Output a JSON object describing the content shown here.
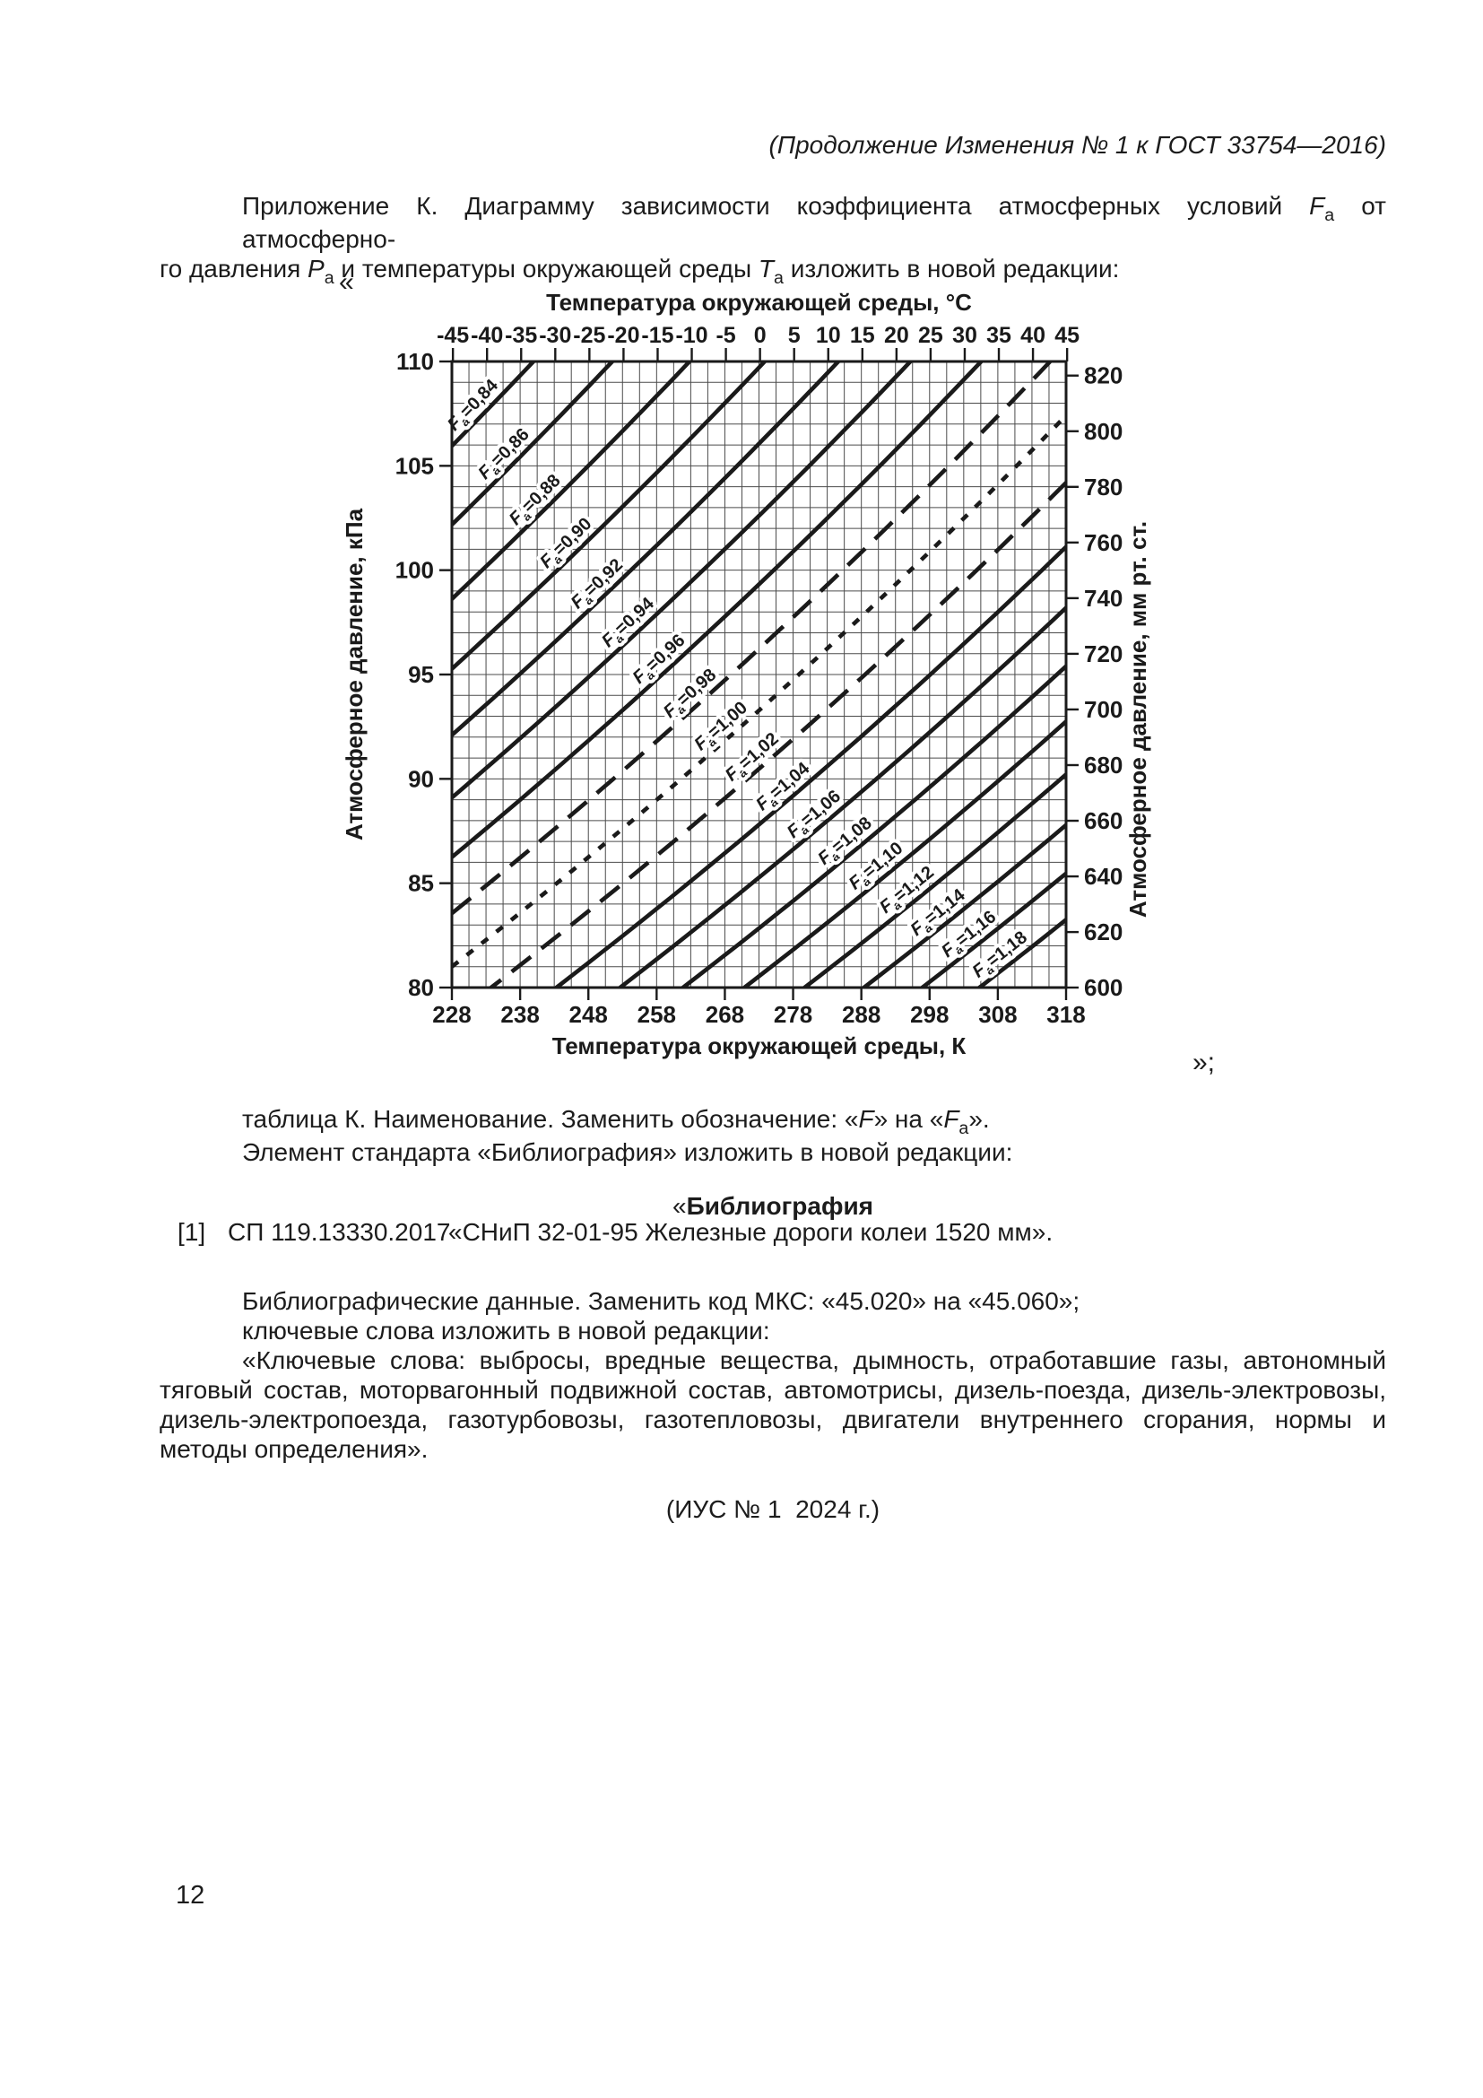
{
  "page": {
    "header": "(Продолжение Изменения № 1 к ГОСТ 33754—2016)",
    "open_quote": "«",
    "close_quote": "»;",
    "page_number": "12",
    "intro": {
      "line1_segments": [
        {
          "t": "Приложение К. Диаграмму зависимости коэффициента атмосферных условий "
        },
        {
          "t": "F",
          "i": true
        },
        {
          "t": "а",
          "s": true
        },
        {
          "t": " от атмосферно-"
        }
      ],
      "line2_segments": [
        {
          "t": "го давления "
        },
        {
          "t": "P",
          "i": true
        },
        {
          "t": "а",
          "s": true
        },
        {
          "t": " и температуры окружающей среды "
        },
        {
          "t": "T",
          "i": true
        },
        {
          "t": "а",
          "s": true
        },
        {
          "t": " изложить в новой редакции:"
        }
      ]
    },
    "after_chart": {
      "tablica_segments": [
        {
          "t": "таблица К. Наименование. Заменить обозначение: «"
        },
        {
          "t": "F",
          "i": true
        },
        {
          "t": "» на «"
        },
        {
          "t": "F",
          "i": true
        },
        {
          "t": "а",
          "s": true
        },
        {
          "t": "»."
        }
      ],
      "element_line": "Элемент стандарта «Библиография» изложить в новой редакции:",
      "bibliography_heading_segments": [
        {
          "t": "«"
        },
        {
          "t": "Библиография",
          "b": true
        }
      ],
      "ref_index": "[1]",
      "ref_code": "СП 119.13330.2017",
      "ref_title": "«СНиП 32-01-95 Железные дороги колеи 1520 мм».",
      "bib_line1": "Библиографические данные. Заменить код МКС: «45.020» на «45.060»;",
      "bib_line2": "ключевые слова изложить в новой редакции:",
      "keywords_lines": [
        "«Ключевые слова: выбросы, вредные вещества, дымность, отработавшие газы, автономный",
        "тяговый состав, моторвагонный подвижной состав, автомотрисы, дизель-поезда, дизель-электровозы,",
        "дизель-электропоезда, газотурбовозы, газотепловозы, двигатели внутреннего сгорания, нормы и",
        "методы определения»."
      ],
      "ius_note": "(ИУС № 1  2024 г.)"
    }
  },
  "chart_data": {
    "type": "line",
    "description": "Диаграмма зависимости коэффициента атмосферных условий Fа от атмосферного давления Pа и температуры окружающей среды Tа (iso-lines of Fа)",
    "x_axis_top": {
      "title": "Температура окружающей среды, °С",
      "ticks": [
        -45,
        -40,
        -35,
        -30,
        -25,
        -20,
        -15,
        -10,
        -5,
        0,
        5,
        10,
        15,
        20,
        25,
        30,
        35,
        40,
        45
      ]
    },
    "x_axis_bottom": {
      "title": "Температура окружающей среды, К",
      "ticks": [
        228,
        238,
        248,
        258,
        268,
        278,
        288,
        298,
        308,
        318
      ],
      "range": [
        228,
        318
      ]
    },
    "y_axis_left": {
      "title": "Атмосферное давление, кПа",
      "ticks": [
        110,
        105,
        100,
        95,
        90,
        85,
        80
      ],
      "range": [
        80,
        110
      ]
    },
    "y_axis_right": {
      "title": "Атмосферное давление, мм рт. ст.",
      "ticks": [
        820,
        800,
        780,
        760,
        740,
        720,
        700,
        680,
        660,
        640,
        620,
        600
      ]
    },
    "grid": {
      "minor_x_K": 2.5,
      "minor_y_kPa": 1
    },
    "model": {
      "formula": "Pa(T) = pa_at_228K * exp(t_coef * (T - 228))",
      "t_coef": 0.003136
    },
    "line_labels": {
      "prefix": "F",
      "sub": "a",
      "t_start": 232.5,
      "t_step": 4.53
    },
    "series": [
      {
        "fa": 0.84,
        "label": "0,84",
        "pa_at_228K": 105.95,
        "style": "solid"
      },
      {
        "fa": 0.86,
        "label": "0,86",
        "pa_at_228K": 102.18,
        "style": "solid"
      },
      {
        "fa": 0.88,
        "label": "0,88",
        "pa_at_228K": 98.62,
        "style": "solid"
      },
      {
        "fa": 0.9,
        "label": "0,90",
        "pa_at_228K": 95.27,
        "style": "solid"
      },
      {
        "fa": 0.92,
        "label": "0,92",
        "pa_at_228K": 92.1,
        "style": "solid"
      },
      {
        "fa": 0.94,
        "label": "0,94",
        "pa_at_228K": 89.1,
        "style": "solid"
      },
      {
        "fa": 0.96,
        "label": "0,96",
        "pa_at_228K": 86.25,
        "style": "solid"
      },
      {
        "fa": 0.98,
        "label": "0,98",
        "pa_at_228K": 83.56,
        "style": "dash"
      },
      {
        "fa": 1.0,
        "label": "1,00",
        "pa_at_228K": 81.0,
        "style": "dash_short"
      },
      {
        "fa": 1.02,
        "label": "1,02",
        "pa_at_228K": 78.57,
        "style": "dash"
      },
      {
        "fa": 1.04,
        "label": "1,04",
        "pa_at_228K": 76.25,
        "style": "solid"
      },
      {
        "fa": 1.06,
        "label": "1,06",
        "pa_at_228K": 74.05,
        "style": "solid"
      },
      {
        "fa": 1.08,
        "label": "1,08",
        "pa_at_228K": 71.94,
        "style": "solid"
      },
      {
        "fa": 1.1,
        "label": "1,10",
        "pa_at_228K": 69.94,
        "style": "solid"
      },
      {
        "fa": 1.12,
        "label": "1,12",
        "pa_at_228K": 68.03,
        "style": "solid"
      },
      {
        "fa": 1.14,
        "label": "1,14",
        "pa_at_228K": 66.2,
        "style": "solid"
      },
      {
        "fa": 1.16,
        "label": "1,16",
        "pa_at_228K": 64.45,
        "style": "solid"
      },
      {
        "fa": 1.18,
        "label": "1,18",
        "pa_at_228K": 62.78,
        "style": "solid"
      }
    ]
  }
}
